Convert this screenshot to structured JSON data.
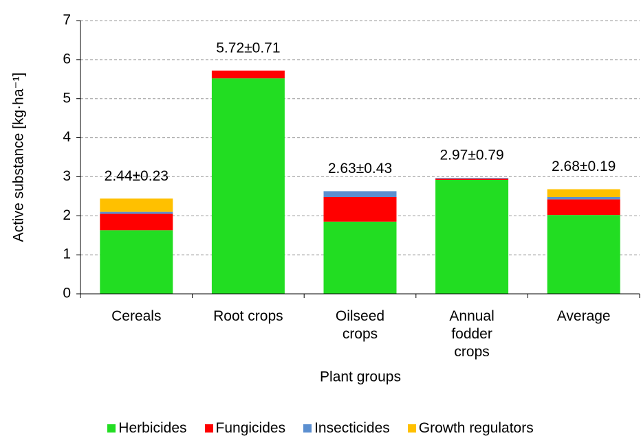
{
  "chart_data": {
    "type": "stacked_bar",
    "y_label": "Active substance [kg·ha⁻¹]",
    "x_label": "Plant groups",
    "categories": [
      "Cereals",
      "Root crops",
      "Oilseed crops",
      "Annual fodder crops",
      "Average"
    ],
    "series": [
      {
        "name": "Herbicides",
        "color": "#22dd22",
        "values": [
          1.63,
          5.52,
          1.85,
          2.92,
          2.02
        ]
      },
      {
        "name": "Fungicides",
        "color": "#ff0000",
        "values": [
          0.42,
          0.2,
          0.63,
          0.03,
          0.4
        ]
      },
      {
        "name": "Insecticides",
        "color": "#5b8fd0",
        "values": [
          0.05,
          0,
          0.15,
          0.02,
          0.06
        ]
      },
      {
        "name": "Growth regulators",
        "color": "#ffc000",
        "values": [
          0.34,
          0,
          0,
          0,
          0.2
        ]
      }
    ],
    "annotations": [
      "2.44±0.23",
      "5.72±0.71",
      "2.63±0.43",
      "2.97±0.79",
      "2.68±0.19"
    ],
    "ylim": [
      0,
      7
    ],
    "yticks": [
      0,
      1,
      2,
      3,
      4,
      5,
      6,
      7
    ],
    "grid": true,
    "legend": "bottom"
  }
}
